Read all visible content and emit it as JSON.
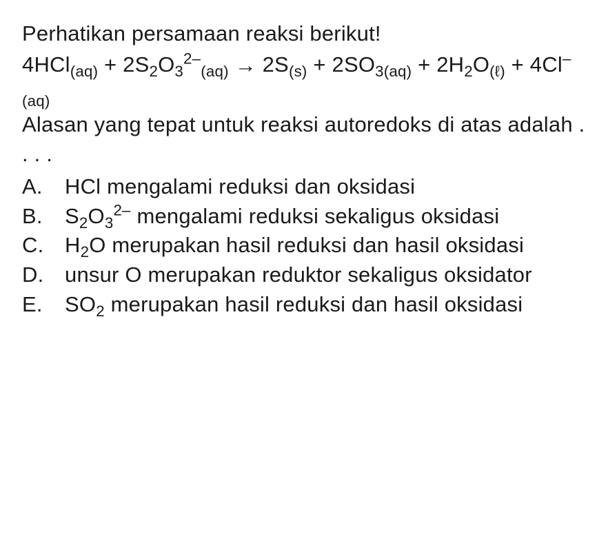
{
  "type": "document",
  "language": "id",
  "background_color": "#ffffff",
  "text_color": "#1a1a1a",
  "font_size_pt": 23,
  "font_family": "Arial",
  "intro": "Perhatikan persamaan reaksi berikut!",
  "equation": {
    "lhs_coef_1": "4",
    "lhs_species_1_pre": "HCl",
    "lhs_species_1_phase": "(aq)",
    "plus_1": " + ",
    "lhs_coef_2": "2",
    "lhs_species_2_pre": "S",
    "lhs_species_2_sub_a": "2",
    "lhs_species_2_mid": "O",
    "lhs_species_2_sub_b": "3",
    "lhs_species_2_charge": "2–",
    "lhs_species_2_phase": "(aq)",
    "arrow": "→",
    "rhs_coef_1": "2",
    "rhs_species_1_pre": "S",
    "rhs_species_1_phase": "(s)",
    "plus_2": " + ",
    "rhs_coef_2": "2",
    "rhs_species_2_pre": "SO",
    "rhs_species_2_sub": "3(aq)",
    "plus_3": " + ",
    "rhs_coef_3": "2",
    "rhs_species_3_pre": "H",
    "rhs_species_3_sub_a": "2",
    "rhs_species_3_mid": "O",
    "rhs_species_3_phase": "(ℓ)",
    "plus_4": " + ",
    "rhs_coef_4": "4",
    "rhs_species_4_pre": "Cl",
    "rhs_species_4_charge": "–",
    "rhs_species_4_phase": "(aq)"
  },
  "prompt": "Alasan yang tepat untuk reaksi autoredoks di atas adalah . . . .",
  "options": {
    "A": {
      "letter": "A.",
      "text_plain": "HCl mengalami reduksi dan oksidasi"
    },
    "B": {
      "letter": "B.",
      "prefix": "S",
      "sub_a": "2",
      "mid": "O",
      "sub_b": "3",
      "charge": "2–",
      "rest": " mengalami reduksi sekaligus oksidasi"
    },
    "C": {
      "letter": "C.",
      "prefix": "H",
      "sub_a": "2",
      "mid": "O",
      "rest": " merupakan hasil reduksi dan hasil oksidasi"
    },
    "D": {
      "letter": "D.",
      "text_plain": "unsur O merupakan reduktor sekaligus oksidator"
    },
    "E": {
      "letter": "E.",
      "prefix": "SO",
      "sub_a": "2",
      "rest": " merupakan hasil reduksi dan hasil oksidasi"
    }
  }
}
